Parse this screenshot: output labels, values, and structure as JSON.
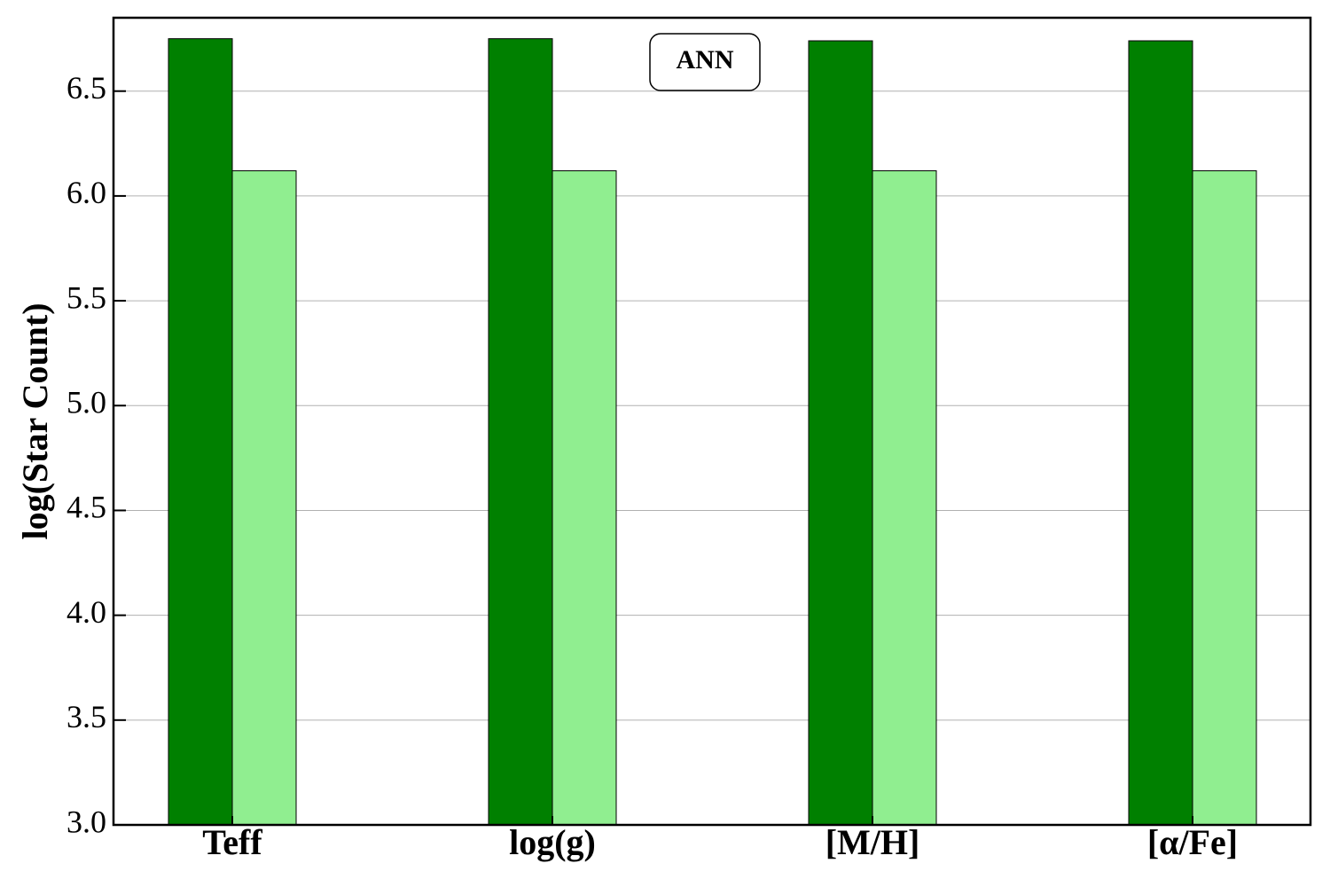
{
  "chart_data": {
    "type": "bar",
    "ylabel": "log(Star Count)",
    "annotation": "ANN",
    "categories": [
      "Teff",
      "log(g)",
      "[M/H]",
      "[α/Fe]"
    ],
    "series": [
      {
        "color": "#008000",
        "values": [
          6.75,
          6.75,
          6.74,
          6.74
        ]
      },
      {
        "color": "#90ee90",
        "values": [
          6.12,
          6.12,
          6.12,
          6.12
        ]
      }
    ],
    "ylim": [
      3,
      6.85
    ],
    "yticks": [
      {
        "value": 3,
        "label": "3.0"
      },
      3.5,
      {
        "value": 4,
        "label": "4.0"
      },
      4.5,
      {
        "value": 5,
        "label": "5.0"
      },
      5.5,
      {
        "value": 6,
        "label": "6.0"
      },
      6.5
    ],
    "grid": true
  }
}
